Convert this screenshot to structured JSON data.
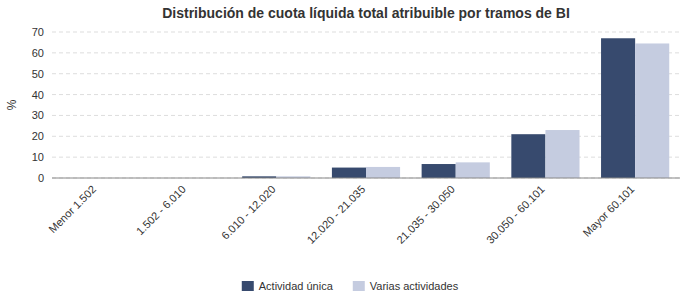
{
  "chart_data": {
    "type": "bar",
    "title": "Distribución de cuota líquida total atribuible por tramos de BI",
    "categories": [
      "Menor 1.502",
      "1.502 - 6.010",
      "6.010 - 12.020",
      "12.020 - 21.035",
      "21.035 - 30.050",
      "30.050 - 60.101",
      "Mayor 60.101"
    ],
    "series": [
      {
        "name": "Actividad única",
        "color": "#374a6e",
        "values": [
          0.0,
          0.0,
          0.8,
          5.0,
          6.7,
          21.0,
          67.0
        ]
      },
      {
        "name": "Varias actividades",
        "color": "#c5cce0",
        "values": [
          0.0,
          0.0,
          0.8,
          5.3,
          7.5,
          23.0,
          64.5
        ]
      }
    ],
    "ylabel": "%",
    "ylim": [
      0,
      70
    ],
    "yticks": [
      0,
      10,
      20,
      30,
      40,
      50,
      60,
      70
    ],
    "grid": true,
    "legend": "bottom"
  }
}
